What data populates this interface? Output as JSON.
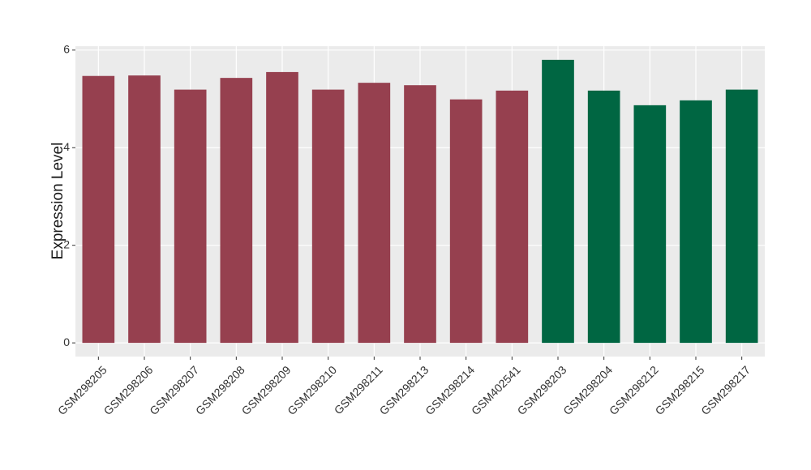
{
  "chart_data": {
    "type": "bar",
    "y_label": "Expression Level",
    "categories": [
      "GSM298205",
      "GSM298206",
      "GSM298207",
      "GSM298208",
      "GSM298209",
      "GSM298210",
      "GSM298211",
      "GSM298213",
      "GSM298214",
      "GSM402541",
      "GSM298203",
      "GSM298204",
      "GSM298212",
      "GSM298215",
      "GSM298217"
    ],
    "values": [
      5.47,
      5.48,
      5.19,
      5.43,
      5.55,
      5.19,
      5.33,
      5.28,
      4.99,
      5.17,
      5.8,
      5.17,
      4.87,
      4.97,
      5.19
    ],
    "colors": [
      "#96404f",
      "#96404f",
      "#96404f",
      "#96404f",
      "#96404f",
      "#96404f",
      "#96404f",
      "#96404f",
      "#96404f",
      "#96404f",
      "#006642",
      "#006642",
      "#006642",
      "#006642",
      "#006642"
    ],
    "ylim": [
      -0.28,
      6.08
    ],
    "yticks": [
      0,
      2,
      4,
      6
    ],
    "grid": true
  }
}
